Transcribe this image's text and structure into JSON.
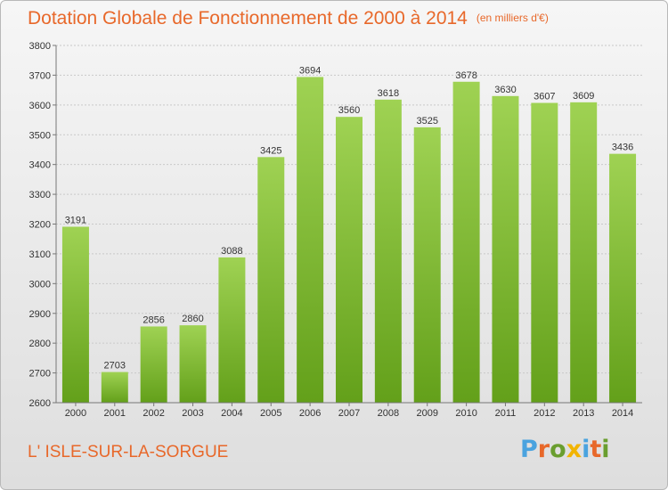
{
  "header": {
    "title": "Dotation Globale de Fonctionnement de 2000 à 2014",
    "subtitle": "(en milliers d'€)"
  },
  "footer": {
    "place": "L' ISLE-SUR-LA-SORGUE",
    "logo": "Proxiti",
    "logo_colors": [
      "#4aa3df",
      "#e8682a",
      "#6a9e2f",
      "#f2b400",
      "#4aa3df",
      "#e8682a",
      "#6a9e2f"
    ]
  },
  "colors": {
    "bar_light": "#9fd253",
    "bar_dark": "#63a01a",
    "accent": "#e8682a"
  },
  "chart_data": {
    "type": "bar",
    "title": "Dotation Globale de Fonctionnement de 2000 à 2014",
    "subtitle": "(en milliers d'€)",
    "categories": [
      "2000",
      "2001",
      "2002",
      "2003",
      "2004",
      "2005",
      "2006",
      "2007",
      "2008",
      "2009",
      "2010",
      "2011",
      "2012",
      "2013",
      "2014"
    ],
    "values": [
      3191,
      2703,
      2856,
      2860,
      3088,
      3425,
      3694,
      3560,
      3618,
      3525,
      3678,
      3630,
      3607,
      3609,
      3436
    ],
    "ylim": [
      2600,
      3800
    ],
    "yticks": [
      2600,
      2700,
      2800,
      2900,
      3000,
      3100,
      3200,
      3300,
      3400,
      3500,
      3600,
      3700,
      3800
    ],
    "grid": true,
    "data_labels": true
  }
}
